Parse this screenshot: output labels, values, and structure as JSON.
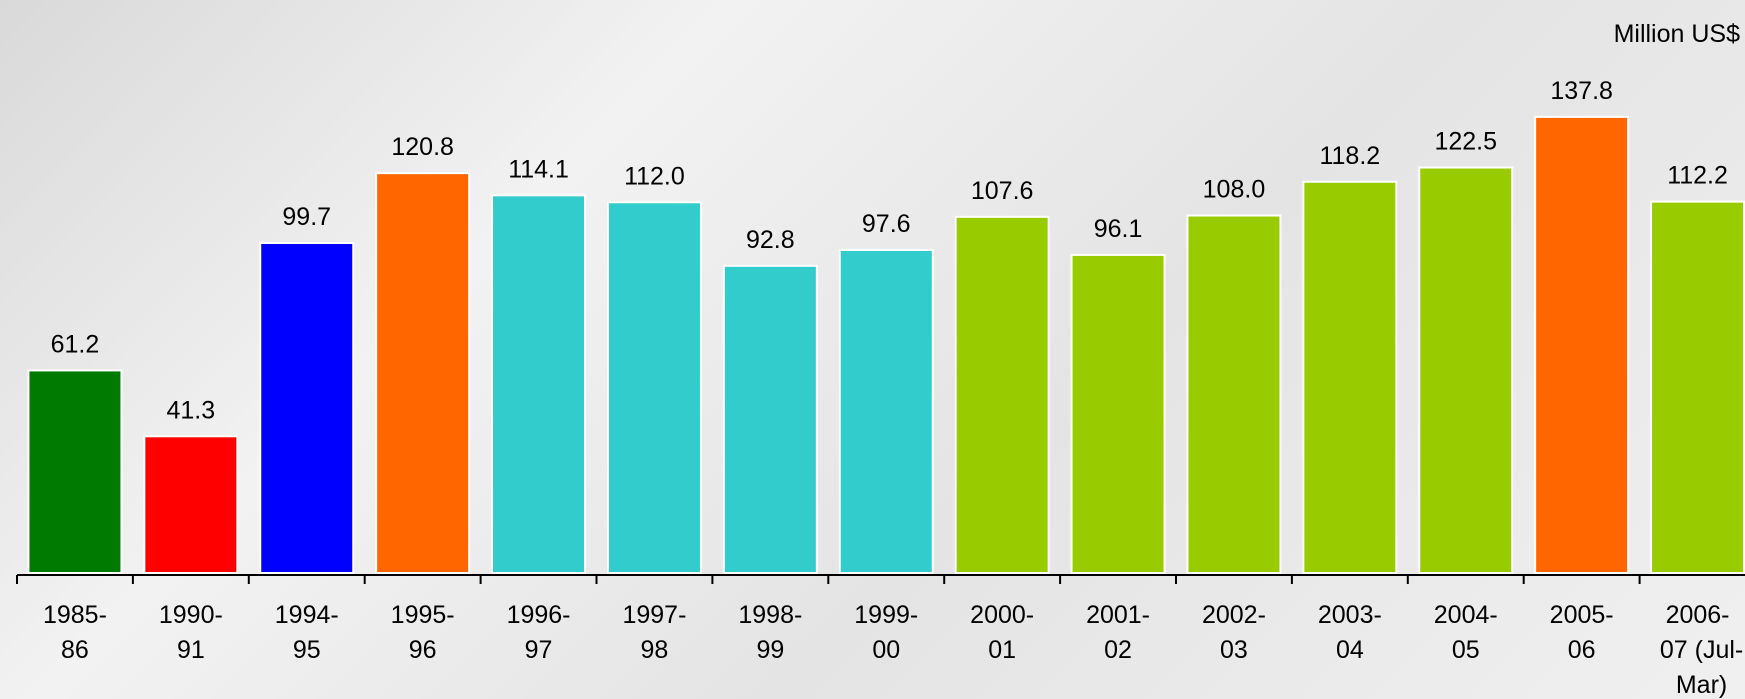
{
  "chart_data": {
    "type": "bar",
    "unit_label": "Million US$",
    "categories": [
      [
        "1985-",
        "86"
      ],
      [
        "1990-",
        "91"
      ],
      [
        "1994-",
        "95"
      ],
      [
        "1995-",
        "96"
      ],
      [
        "1996-",
        "97"
      ],
      [
        "1997-",
        "98"
      ],
      [
        "1998-",
        "99"
      ],
      [
        "1999-",
        "00"
      ],
      [
        "2000-",
        "01"
      ],
      [
        "2001-",
        "02"
      ],
      [
        "2002-",
        "03"
      ],
      [
        "2003-",
        "04"
      ],
      [
        "2004-",
        "05"
      ],
      [
        "2005-",
        "06"
      ],
      [
        "2006-",
        "07 (Jul-",
        "Mar)"
      ]
    ],
    "values": [
      61.2,
      41.3,
      99.7,
      120.8,
      114.1,
      112,
      92.8,
      97.6,
      107.6,
      96.1,
      108,
      118.2,
      122.5,
      137.8,
      112.2
    ],
    "value_labels": [
      "61.2",
      "41.3",
      "99.7",
      "120.8",
      "114.1",
      "112.0",
      "92.8",
      "97.6",
      "107.6",
      "96.1",
      "108.0",
      "118.2",
      "122.5",
      "137.8",
      "112.2"
    ],
    "colors": [
      "#007a00",
      "#ff0000",
      "#0000ff",
      "#ff6600",
      "#33cccc",
      "#33cccc",
      "#33cccc",
      "#33cccc",
      "#99cc00",
      "#99cc00",
      "#99cc00",
      "#99cc00",
      "#99cc00",
      "#ff6600",
      "#99cc00"
    ]
  }
}
